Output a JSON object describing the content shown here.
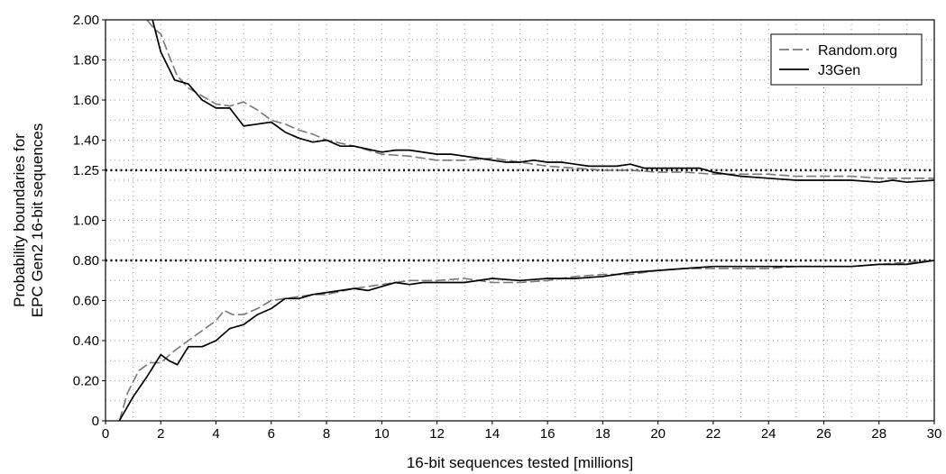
{
  "chart_data": {
    "type": "line",
    "xlabel": "16-bit sequences tested [millions]",
    "ylabel_lines": [
      "Probability boundaries for",
      "EPC Gen2 16-bit sequences"
    ],
    "xlim": [
      0,
      30
    ],
    "ylim": [
      0,
      2.0
    ],
    "x_ticks": [
      0,
      2,
      4,
      6,
      8,
      10,
      12,
      14,
      16,
      18,
      20,
      22,
      24,
      26,
      28,
      30
    ],
    "x_tick_labels": [
      "0",
      "2",
      "4",
      "6",
      "8",
      "10",
      "12",
      "14",
      "16",
      "18",
      "20",
      "22",
      "24",
      "26",
      "28",
      "30"
    ],
    "y_ticks": [
      0,
      0.2,
      0.4,
      0.6,
      0.8,
      1.0,
      1.25,
      1.4,
      1.6,
      1.8,
      2.0
    ],
    "y_tick_labels": [
      "0",
      "0.20",
      "0.40",
      "0.60",
      "0.80",
      "1.00",
      "1.25",
      "1.40",
      "1.60",
      "1.80",
      "2.00"
    ],
    "x_minor_grid": [
      1,
      3,
      5,
      7,
      9,
      11,
      13,
      15,
      17,
      19,
      21,
      23,
      25,
      27,
      29
    ],
    "y_minor_grid": [
      0.1,
      0.3,
      0.5,
      0.7,
      0.9,
      1.1,
      1.2,
      1.3,
      1.5,
      1.7,
      1.9
    ],
    "reference_lines": [
      1.25,
      0.8
    ],
    "grid": true,
    "legend_position": "top-right",
    "series": [
      {
        "name": "Random.org",
        "style": "dashed",
        "color": "#777777",
        "upper": {
          "x": [
            1.5,
            1.8,
            2.0,
            2.3,
            2.6,
            3.0,
            3.5,
            4.0,
            4.5,
            5.0,
            5.5,
            6.0,
            6.5,
            7.0,
            7.5,
            8.0,
            9.0,
            10.0,
            11.0,
            12.0,
            13.0,
            14.0,
            15.0,
            16.0,
            17.0,
            18.0,
            19.0,
            20.0,
            21.0,
            22.0,
            23.0,
            24.0,
            25.0,
            26.0,
            27.0,
            28.0,
            29.0,
            30.0
          ],
          "y": [
            2.0,
            1.95,
            1.93,
            1.82,
            1.72,
            1.66,
            1.62,
            1.58,
            1.57,
            1.59,
            1.55,
            1.5,
            1.48,
            1.45,
            1.43,
            1.4,
            1.37,
            1.33,
            1.32,
            1.3,
            1.3,
            1.31,
            1.29,
            1.27,
            1.26,
            1.25,
            1.25,
            1.24,
            1.24,
            1.23,
            1.23,
            1.23,
            1.22,
            1.22,
            1.22,
            1.21,
            1.21,
            1.21
          ]
        },
        "lower": {
          "x": [
            0.5,
            0.8,
            1.2,
            1.6,
            2.0,
            2.5,
            3.0,
            3.5,
            4.0,
            4.3,
            4.6,
            5.0,
            5.5,
            6.0,
            6.5,
            7.0,
            7.5,
            8.0,
            9.0,
            10.0,
            11.0,
            12.0,
            13.0,
            14.0,
            15.0,
            16.0,
            17.0,
            18.0,
            19.0,
            20.0,
            21.0,
            22.0,
            23.0,
            24.0,
            25.0,
            26.0,
            27.0,
            28.0,
            29.0,
            30.0
          ],
          "y": [
            0.0,
            0.14,
            0.25,
            0.29,
            0.29,
            0.35,
            0.4,
            0.45,
            0.5,
            0.55,
            0.53,
            0.53,
            0.56,
            0.6,
            0.61,
            0.62,
            0.63,
            0.63,
            0.66,
            0.68,
            0.7,
            0.7,
            0.71,
            0.69,
            0.69,
            0.7,
            0.72,
            0.73,
            0.73,
            0.75,
            0.76,
            0.76,
            0.76,
            0.76,
            0.77,
            0.77,
            0.77,
            0.78,
            0.79,
            0.8
          ]
        }
      },
      {
        "name": "J3Gen",
        "style": "solid",
        "color": "#000000",
        "upper": {
          "x": [
            1.7,
            2.0,
            2.5,
            3.0,
            3.5,
            4.0,
            4.5,
            5.0,
            5.5,
            6.0,
            6.5,
            7.0,
            7.5,
            8.0,
            8.5,
            9.0,
            10.0,
            10.5,
            11.0,
            12.0,
            12.5,
            13.0,
            13.5,
            14.0,
            14.5,
            15.0,
            15.5,
            16.0,
            16.5,
            17.0,
            17.5,
            18.0,
            18.5,
            19.0,
            19.5,
            20.0,
            21.0,
            21.5,
            22.0,
            23.0,
            24.0,
            25.0,
            26.0,
            27.0,
            28.0,
            28.5,
            29.0,
            30.0
          ],
          "y": [
            2.0,
            1.84,
            1.7,
            1.68,
            1.6,
            1.56,
            1.56,
            1.47,
            1.48,
            1.49,
            1.44,
            1.41,
            1.39,
            1.4,
            1.37,
            1.37,
            1.34,
            1.35,
            1.35,
            1.33,
            1.33,
            1.32,
            1.31,
            1.3,
            1.29,
            1.29,
            1.3,
            1.29,
            1.29,
            1.28,
            1.27,
            1.27,
            1.27,
            1.28,
            1.26,
            1.26,
            1.26,
            1.26,
            1.24,
            1.22,
            1.21,
            1.2,
            1.2,
            1.2,
            1.19,
            1.2,
            1.19,
            1.2
          ]
        },
        "lower": {
          "x": [
            0.5,
            1.0,
            1.5,
            2.0,
            2.3,
            2.6,
            3.0,
            3.5,
            4.0,
            4.5,
            5.0,
            5.5,
            6.0,
            6.5,
            7.0,
            7.5,
            8.0,
            8.5,
            9.0,
            9.5,
            10.0,
            10.5,
            11.0,
            11.5,
            12.0,
            13.0,
            14.0,
            15.0,
            16.0,
            17.0,
            18.0,
            19.0,
            20.0,
            21.0,
            22.0,
            23.0,
            24.0,
            25.0,
            26.0,
            27.0,
            28.0,
            29.0,
            30.0
          ],
          "y": [
            0.0,
            0.12,
            0.22,
            0.33,
            0.3,
            0.28,
            0.37,
            0.37,
            0.4,
            0.46,
            0.48,
            0.53,
            0.56,
            0.61,
            0.61,
            0.63,
            0.64,
            0.65,
            0.66,
            0.65,
            0.67,
            0.69,
            0.68,
            0.69,
            0.69,
            0.69,
            0.71,
            0.7,
            0.71,
            0.71,
            0.72,
            0.74,
            0.75,
            0.76,
            0.77,
            0.77,
            0.77,
            0.77,
            0.77,
            0.77,
            0.78,
            0.78,
            0.8
          ]
        }
      }
    ]
  }
}
